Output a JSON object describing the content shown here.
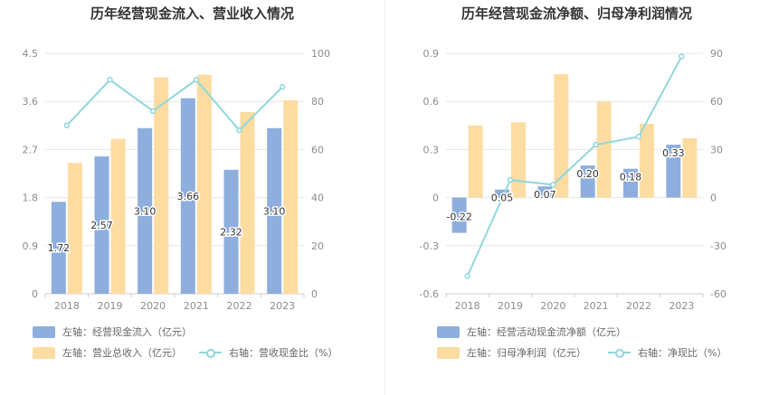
{
  "chart_data": [
    {
      "type": "bar+line",
      "title": "历年经营现金流入、营业收入情况",
      "categories": [
        "2018",
        "2019",
        "2020",
        "2021",
        "2022",
        "2023"
      ],
      "y_left": {
        "ticks": [
          "0",
          "0.9",
          "1.8",
          "2.7",
          "3.6",
          "4.5"
        ],
        "ylim": [
          0,
          4.5
        ]
      },
      "y_right": {
        "ticks": [
          "0",
          "20",
          "40",
          "60",
          "80",
          "100"
        ],
        "ylim": [
          0,
          100
        ]
      },
      "series": [
        {
          "name": "左轴：经营现金流入（亿元）",
          "kind": "bar",
          "axis": "left",
          "color": "#8eaedd",
          "values": [
            1.72,
            2.57,
            3.1,
            3.66,
            2.32,
            3.1
          ],
          "labels": [
            "1.72",
            "2.57",
            "3.10",
            "3.66",
            "2.32",
            "3.10"
          ]
        },
        {
          "name": "左轴：营业总收入（亿元）",
          "kind": "bar",
          "axis": "left",
          "color": "#fddca2",
          "values": [
            2.45,
            2.9,
            4.05,
            4.1,
            3.4,
            3.62
          ]
        },
        {
          "name": "右轴：营收现金比（%）",
          "kind": "line",
          "axis": "right",
          "color": "#8fd7dc",
          "values": [
            70,
            89,
            76,
            89,
            68,
            86
          ]
        }
      ],
      "legend": [
        {
          "label": "左轴：经营现金流入（亿元）",
          "kind": "box",
          "color": "#8eaedd"
        },
        {
          "label": "左轴：营业总收入（亿元）",
          "kind": "box",
          "color": "#fddca2"
        },
        {
          "label": "右轴：营收现金比（%）",
          "kind": "line",
          "color": "#8fd7dc"
        }
      ]
    },
    {
      "type": "bar+line",
      "title": "历年经营现金流净额、归母净利润情况",
      "categories": [
        "2018",
        "2019",
        "2020",
        "2021",
        "2022",
        "2023"
      ],
      "y_left": {
        "ticks": [
          "-0.6",
          "-0.3",
          "0",
          "0.3",
          "0.6",
          "0.9"
        ],
        "ylim": [
          -0.6,
          0.9
        ]
      },
      "y_right": {
        "ticks": [
          "-60",
          "-30",
          "0",
          "30",
          "60",
          "90"
        ],
        "ylim": [
          -60,
          90
        ]
      },
      "series": [
        {
          "name": "左轴：经营活动现金流净额（亿元）",
          "kind": "bar",
          "axis": "left",
          "color": "#8eaedd",
          "values": [
            -0.22,
            0.05,
            0.07,
            0.2,
            0.18,
            0.33
          ],
          "labels": [
            "-0.22",
            "0.05",
            "0.07",
            "0.20",
            "0.18",
            "0.33"
          ]
        },
        {
          "name": "左轴：归母净利润（亿元）",
          "kind": "bar",
          "axis": "left",
          "color": "#fddca2",
          "values": [
            0.45,
            0.47,
            0.77,
            0.6,
            0.46,
            0.37
          ]
        },
        {
          "name": "右轴：净现比（%）",
          "kind": "line",
          "axis": "right",
          "color": "#8fd7dc",
          "values": [
            -49,
            11,
            8,
            33,
            38,
            88
          ]
        }
      ],
      "legend": [
        {
          "label": "左轴：经营活动现金流净额（亿元）",
          "kind": "box",
          "color": "#8eaedd"
        },
        {
          "label": "左轴：归母净利润（亿元）",
          "kind": "box",
          "color": "#fddca2"
        },
        {
          "label": "右轴：净现比（%）",
          "kind": "line",
          "color": "#8fd7dc"
        }
      ]
    }
  ]
}
